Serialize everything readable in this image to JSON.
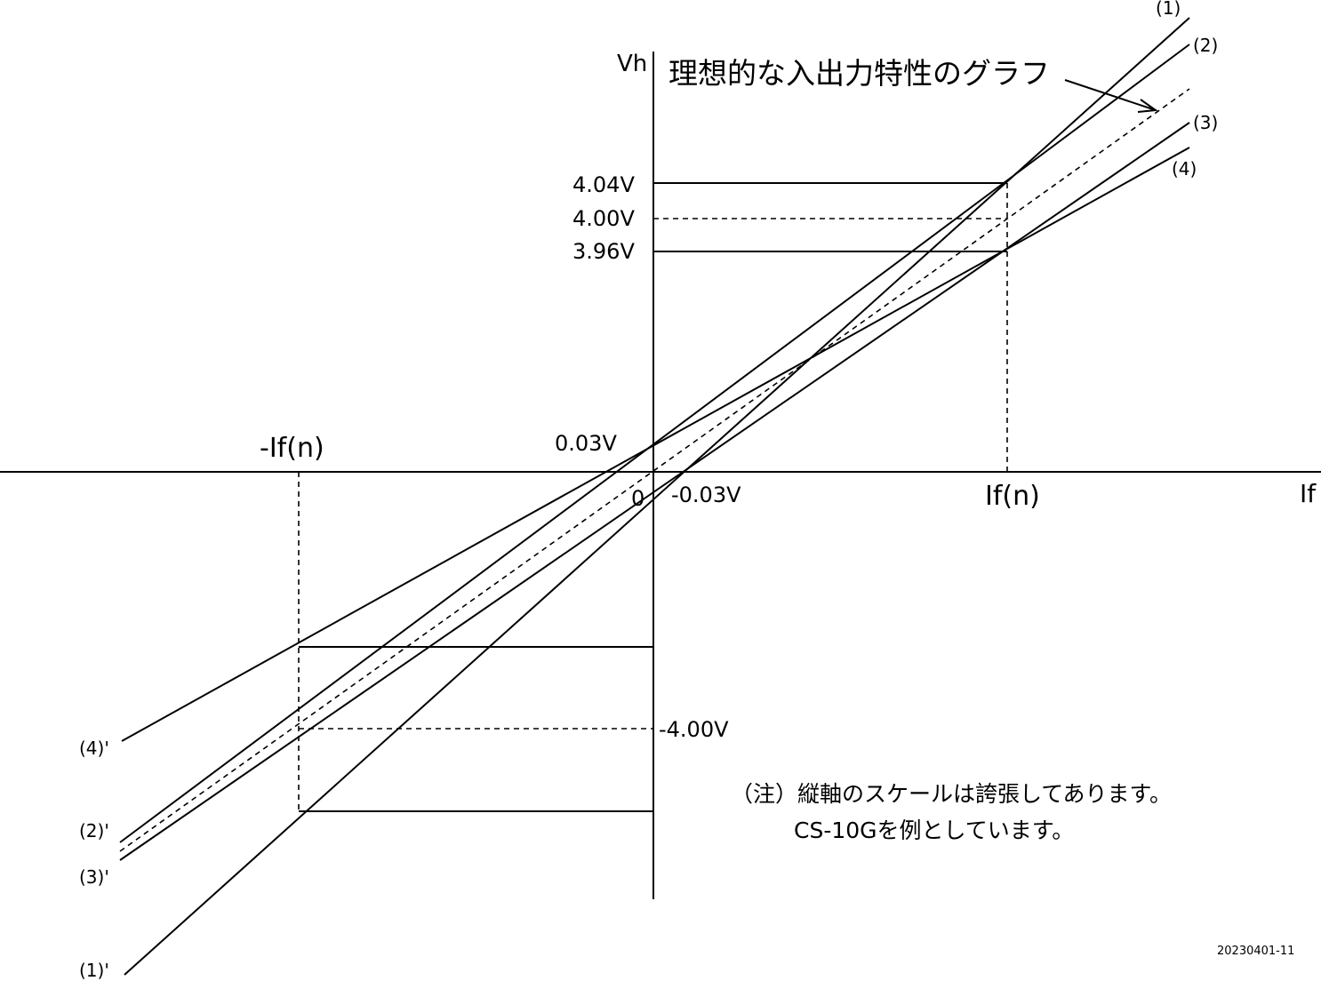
{
  "title": "理想的な入出力特性のグラフ",
  "axes": {
    "vertical_label": "Vh",
    "horizontal_label": "If",
    "origin_label": "0"
  },
  "current_labels": {
    "positive": "If(n)",
    "negative": "-If(n)"
  },
  "voltage_labels": {
    "v_404": "4.04V",
    "v_400": "4.00V",
    "v_396": "3.96V",
    "v_plus_003": "0.03V",
    "v_minus_003": "-0.03V",
    "v_minus_400": "-4.00V"
  },
  "line_labels": {
    "l1": "(1)",
    "l2": "(2)",
    "l3": "(3)",
    "l4": "(4)",
    "l1p": "(1)'",
    "l2p": "(2)'",
    "l3p": "(3)'",
    "l4p": "(4)'"
  },
  "note": {
    "line1": "（注）縦軸のスケールは誇張してあります。",
    "line2": "CS-10Gを例としています。"
  },
  "doc_id": "20230401-11"
}
